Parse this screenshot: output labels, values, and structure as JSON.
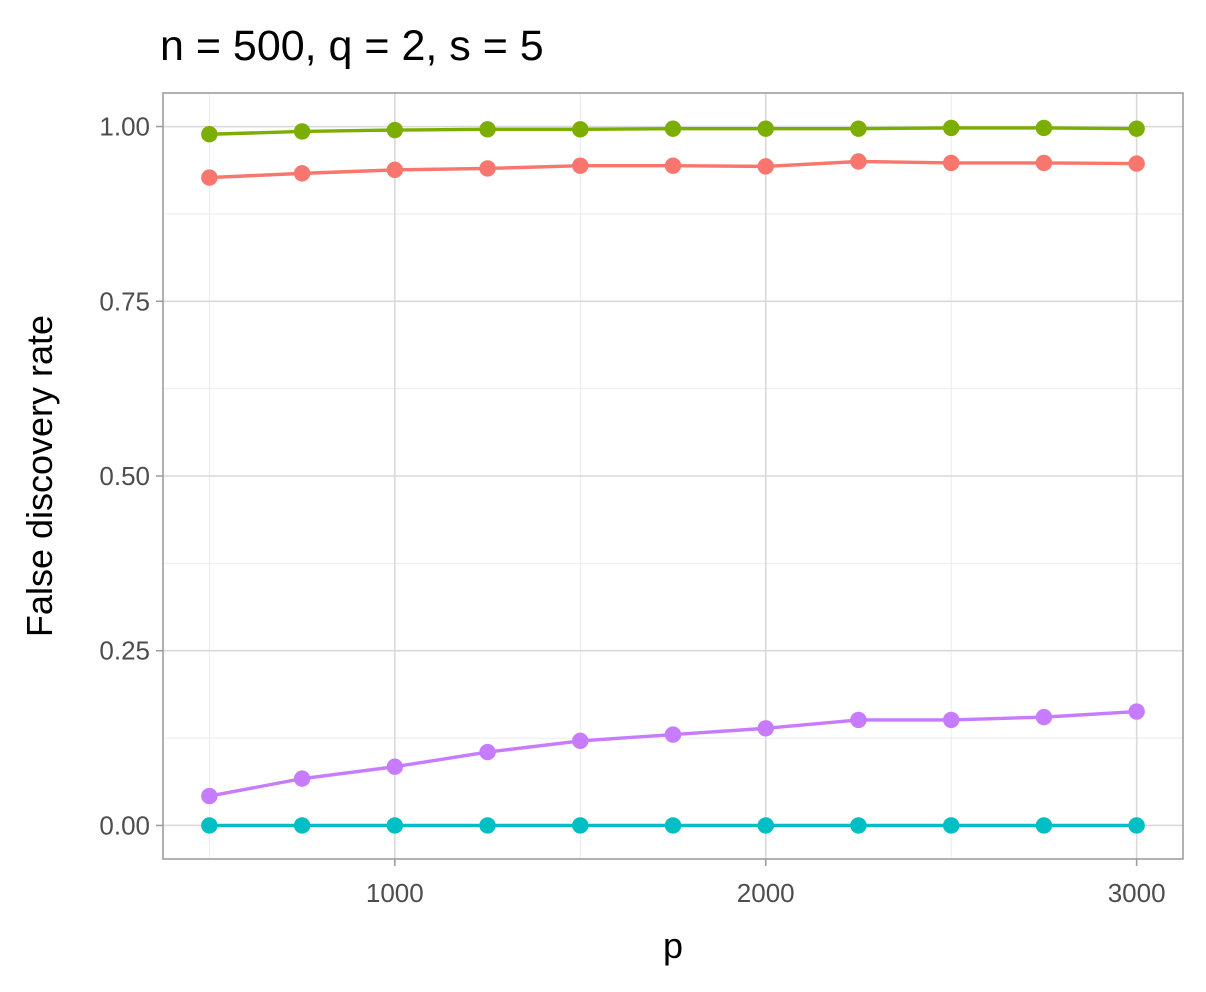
{
  "chart_data": {
    "type": "line",
    "title": "n = 500, q = 2, s = 5",
    "xlabel": "p",
    "ylabel": "False discovery rate",
    "xlim": [
      375,
      3125
    ],
    "ylim": [
      -0.048,
      1.048
    ],
    "x_ticks": [
      1000,
      2000,
      3000
    ],
    "x_tick_labels": [
      "1000",
      "2000",
      "3000"
    ],
    "y_ticks": [
      0,
      0.25,
      0.5,
      0.75,
      1
    ],
    "y_tick_labels": [
      "0.00",
      "0.25",
      "0.50",
      "0.75",
      "1.00"
    ],
    "grid": true,
    "legend": "none",
    "x": [
      500,
      750,
      1000,
      1250,
      1500,
      1750,
      2000,
      2250,
      2500,
      2750,
      3000
    ],
    "series": [
      {
        "color": "#7CAE00",
        "values": [
          0.989,
          0.993,
          0.995,
          0.996,
          0.996,
          0.997,
          0.997,
          0.997,
          0.998,
          0.998,
          0.997
        ]
      },
      {
        "color": "#F8766D",
        "values": [
          0.927,
          0.933,
          0.938,
          0.94,
          0.944,
          0.944,
          0.943,
          0.95,
          0.948,
          0.948,
          0.947
        ]
      },
      {
        "color": "#C77CFF",
        "values": [
          0.042,
          0.067,
          0.084,
          0.105,
          0.121,
          0.13,
          0.139,
          0.151,
          0.151,
          0.155,
          0.163
        ]
      },
      {
        "color": "#00BFC4",
        "values": [
          0.0,
          0.0,
          0.0,
          0.0,
          0.0,
          0.0,
          0.0,
          0.0,
          0.0,
          0.0,
          0.0
        ]
      }
    ]
  }
}
